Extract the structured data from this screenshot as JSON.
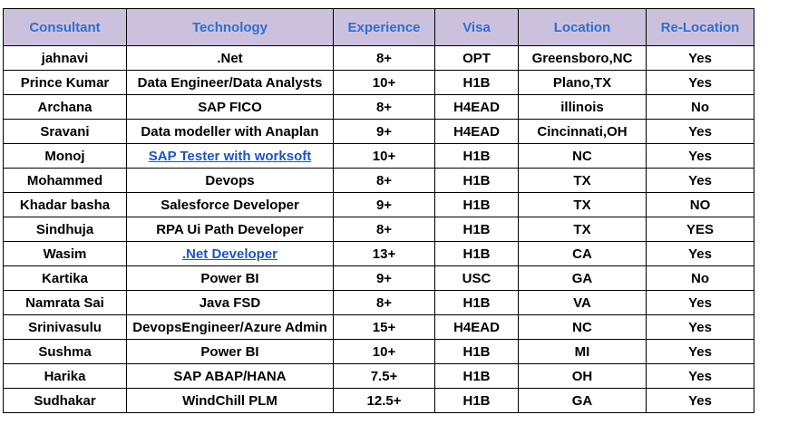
{
  "table": {
    "headers": [
      "Consultant",
      "Technology",
      "Experience",
      "Visa",
      "Location",
      "Re-Location"
    ],
    "rows": [
      {
        "consultant": "jahnavi",
        "technology": ".Net",
        "experience": "8+",
        "visa": "OPT",
        "location": "Greensboro,NC",
        "relocation": "Yes"
      },
      {
        "consultant": "Prince Kumar",
        "technology": "Data Engineer/Data Analysts",
        "experience": "10+",
        "visa": "H1B",
        "location": "Plano,TX",
        "relocation": "Yes"
      },
      {
        "consultant": "Archana",
        "technology": "SAP FICO",
        "experience": "8+",
        "visa": "H4EAD",
        "location": "illinois",
        "relocation": "No"
      },
      {
        "consultant": "Sravani",
        "technology": "Data modeller  with Anaplan",
        "experience": "9+",
        "visa": "H4EAD",
        "location": "Cincinnati,OH",
        "relocation": "Yes"
      },
      {
        "consultant": "Monoj",
        "technology": "SAP Tester with worksoft",
        "technology_link": true,
        "experience": "10+",
        "visa": "H1B",
        "location": "NC",
        "relocation": "Yes"
      },
      {
        "consultant": "Mohammed",
        "technology": "Devops",
        "experience": "8+",
        "visa": "H1B",
        "location": "TX",
        "relocation": "Yes"
      },
      {
        "consultant": "Khadar basha",
        "technology": "Salesforce Developer",
        "experience": "9+",
        "visa": "H1B",
        "location": "TX",
        "relocation": "NO"
      },
      {
        "consultant": "Sindhuja",
        "technology": "RPA Ui Path Developer",
        "experience": "8+",
        "visa": "H1B",
        "location": "TX",
        "relocation": "YES"
      },
      {
        "consultant": "Wasim",
        "technology": ".Net Developer",
        "technology_link": true,
        "experience": "13+",
        "visa": "H1B",
        "location": "CA",
        "relocation": "Yes"
      },
      {
        "consultant": "Kartika",
        "technology": "Power BI",
        "experience": "9+",
        "visa": "USC",
        "location": "GA",
        "relocation": "No"
      },
      {
        "consultant": "Namrata Sai",
        "technology": "Java FSD",
        "experience": "8+",
        "visa": "H1B",
        "location": "VA",
        "relocation": "Yes"
      },
      {
        "consultant": "Srinivasulu",
        "technology": "DevopsEngineer/Azure Admin",
        "experience": "15+",
        "visa": "H4EAD",
        "location": "NC",
        "relocation": "Yes"
      },
      {
        "consultant": "Sushma",
        "technology": "Power BI",
        "experience": "10+",
        "visa": "H1B",
        "location": "MI",
        "relocation": "Yes"
      },
      {
        "consultant": "Harika",
        "technology": "SAP ABAP/HANA",
        "experience": "7.5+",
        "visa": "H1B",
        "location": "OH",
        "relocation": "Yes"
      },
      {
        "consultant": "Sudhakar",
        "technology": "WindChill PLM",
        "experience": "12.5+",
        "visa": "H1B",
        "location": "GA",
        "relocation": "Yes"
      }
    ]
  },
  "colors": {
    "header_bg": "#ccc1dd",
    "header_text": "#2f6fd0",
    "link_text": "#1a55c9",
    "border": "#000000"
  }
}
